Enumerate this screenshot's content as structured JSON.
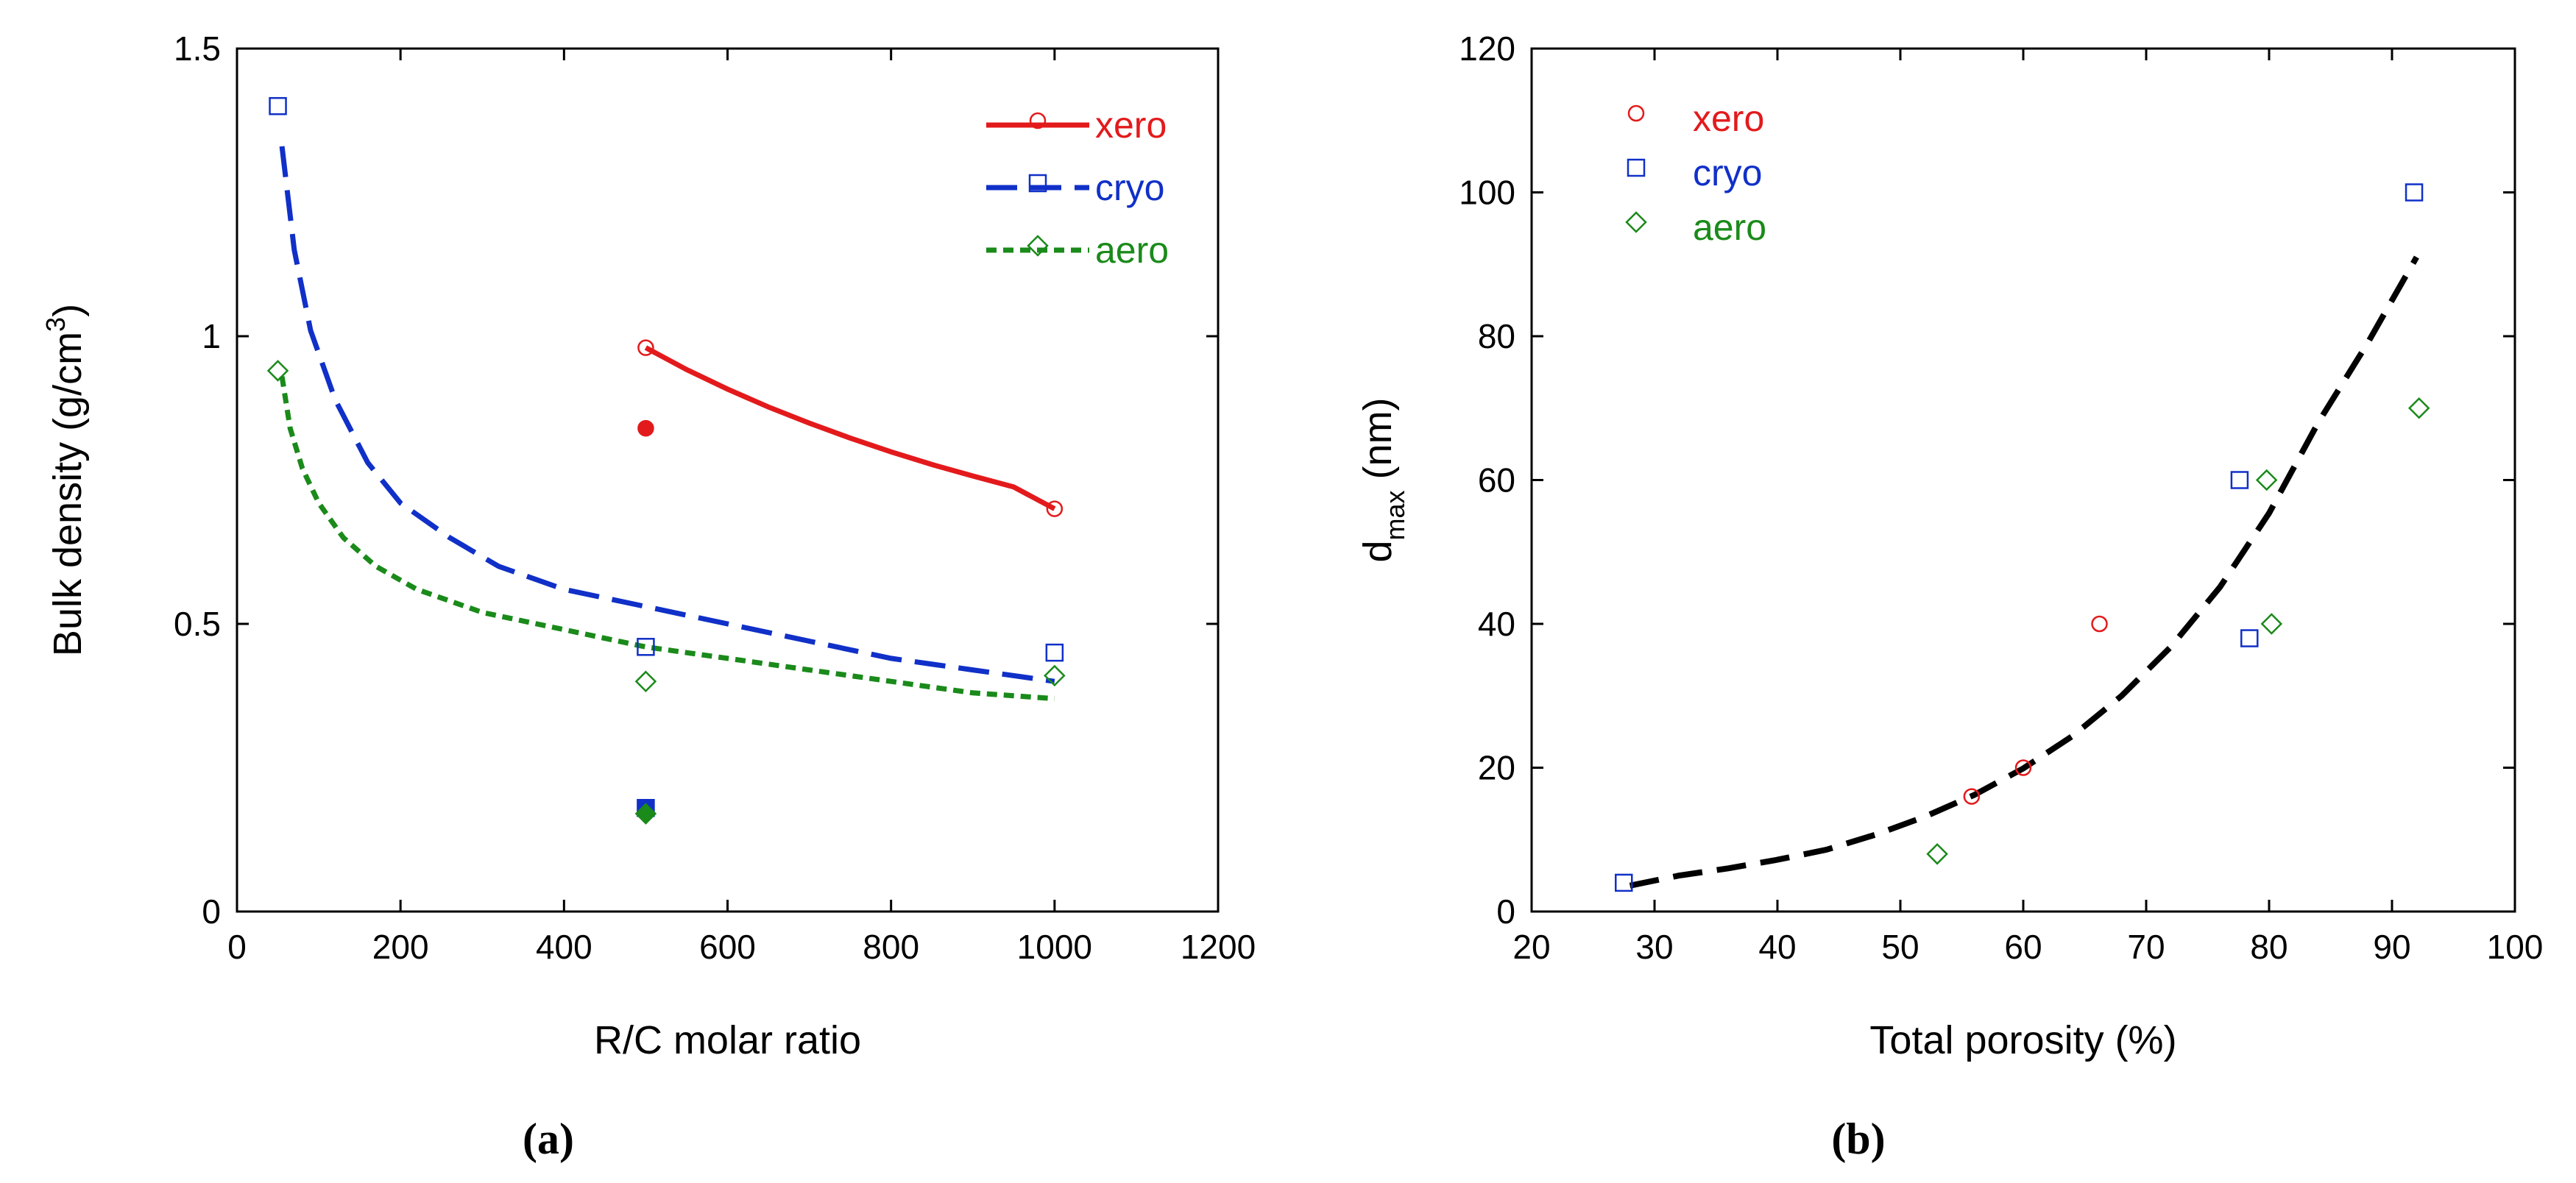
{
  "chart_data": [
    {
      "type": "scatter",
      "panel_label": "(a)",
      "xlabel": "R/C molar ratio",
      "ylabel_prefix": "Bulk density (g/cm",
      "ylabel_sup": "3",
      "ylabel_suffix": ")",
      "xlim": [
        0,
        1200
      ],
      "ylim": [
        0,
        1.5
      ],
      "x_ticks": [
        0,
        200,
        400,
        600,
        800,
        1000,
        1200
      ],
      "y_ticks": [
        0,
        0.5,
        1,
        1.5
      ],
      "y_tick_labels": [
        "0",
        "0.5",
        "1",
        "1.5"
      ],
      "legend_position": "top-right",
      "series": [
        {
          "name": "xero",
          "color": "#e31a1c",
          "marker": "circle",
          "line": "solid",
          "points": [
            [
              500,
              0.98
            ],
            [
              1000,
              0.7
            ]
          ],
          "filled_points": [
            [
              500,
              0.84
            ]
          ],
          "fit": [
            [
              500,
              0.98
            ],
            [
              550,
              0.942
            ],
            [
              600,
              0.908
            ],
            [
              650,
              0.877
            ],
            [
              700,
              0.849
            ],
            [
              750,
              0.823
            ],
            [
              800,
              0.799
            ],
            [
              850,
              0.777
            ],
            [
              900,
              0.757
            ],
            [
              950,
              0.738
            ],
            [
              1000,
              0.7
            ]
          ]
        },
        {
          "name": "cryo",
          "color": "#1030c8",
          "marker": "square",
          "line": "dashed",
          "points": [
            [
              50,
              1.4
            ],
            [
              500,
              0.46
            ],
            [
              1000,
              0.45
            ]
          ],
          "filled_points": [
            [
              500,
              0.18
            ]
          ],
          "fit": [
            [
              55,
              1.33
            ],
            [
              70,
              1.15
            ],
            [
              90,
              1.01
            ],
            [
              120,
              0.89
            ],
            [
              160,
              0.78
            ],
            [
              200,
              0.71
            ],
            [
              260,
              0.65
            ],
            [
              320,
              0.6
            ],
            [
              400,
              0.56
            ],
            [
              500,
              0.53
            ],
            [
              600,
              0.5
            ],
            [
              700,
              0.47
            ],
            [
              800,
              0.44
            ],
            [
              900,
              0.42
            ],
            [
              1000,
              0.4
            ]
          ]
        },
        {
          "name": "aero",
          "color": "#1a8a1a",
          "marker": "diamond",
          "line": "dotted",
          "points": [
            [
              50,
              0.94
            ],
            [
              500,
              0.4
            ],
            [
              1000,
              0.41
            ]
          ],
          "filled_points": [
            [
              500,
              0.17
            ]
          ],
          "fit": [
            [
              55,
              0.93
            ],
            [
              65,
              0.84
            ],
            [
              80,
              0.77
            ],
            [
              100,
              0.71
            ],
            [
              130,
              0.65
            ],
            [
              170,
              0.6
            ],
            [
              220,
              0.56
            ],
            [
              300,
              0.52
            ],
            [
              400,
              0.49
            ],
            [
              500,
              0.46
            ],
            [
              600,
              0.44
            ],
            [
              700,
              0.42
            ],
            [
              800,
              0.4
            ],
            [
              900,
              0.38
            ],
            [
              1000,
              0.37
            ]
          ]
        }
      ]
    },
    {
      "type": "scatter",
      "panel_label": "(b)",
      "xlabel": "Total porosity (%)",
      "ylabel_main": "d",
      "ylabel_sub": "max",
      "ylabel_suffix": " (nm)",
      "xlim": [
        20,
        100
      ],
      "ylim": [
        0,
        120
      ],
      "x_ticks": [
        20,
        30,
        40,
        50,
        60,
        70,
        80,
        90,
        100
      ],
      "y_ticks": [
        0,
        20,
        40,
        60,
        80,
        100,
        120
      ],
      "legend_position": "top-left",
      "series": [
        {
          "name": "xero",
          "color": "#e31a1c",
          "marker": "circle",
          "points": [
            [
              55.8,
              16
            ],
            [
              60,
              20
            ],
            [
              66.2,
              40
            ]
          ]
        },
        {
          "name": "cryo",
          "color": "#1030c8",
          "marker": "square",
          "points": [
            [
              27.5,
              4
            ],
            [
              77.6,
              60
            ],
            [
              78.4,
              38
            ],
            [
              91.8,
              100
            ]
          ]
        },
        {
          "name": "aero",
          "color": "#1a8a1a",
          "marker": "diamond",
          "points": [
            [
              53,
              8
            ],
            [
              79.8,
              60
            ],
            [
              80.2,
              40
            ],
            [
              92.2,
              70
            ]
          ]
        }
      ],
      "fit": {
        "color": "#000000",
        "line": "dashed",
        "points": [
          [
            28,
            3.6
          ],
          [
            32,
            5
          ],
          [
            36,
            6
          ],
          [
            40,
            7.2
          ],
          [
            44,
            8.6
          ],
          [
            48,
            10.7
          ],
          [
            52,
            13.2
          ],
          [
            56,
            16.2
          ],
          [
            60,
            19.9
          ],
          [
            64,
            24.4
          ],
          [
            68,
            30
          ],
          [
            72,
            36.8
          ],
          [
            76,
            45.1
          ],
          [
            80,
            55.4
          ],
          [
            84,
            68
          ],
          [
            88,
            79
          ],
          [
            92,
            91
          ]
        ]
      }
    }
  ]
}
